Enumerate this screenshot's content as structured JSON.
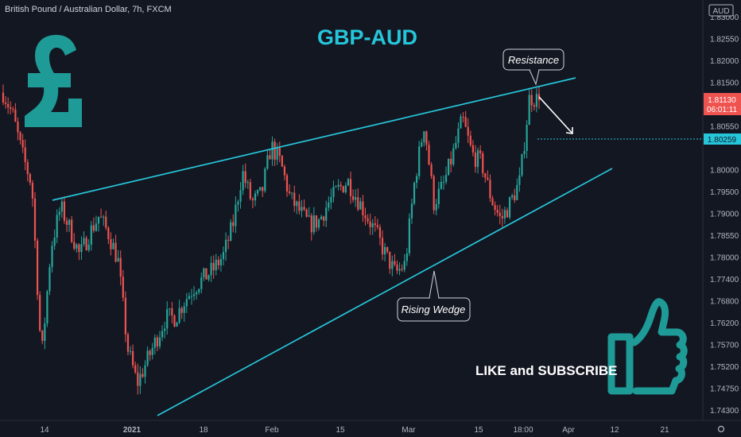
{
  "header": {
    "symbol": "British Pound / Australian Dollar, 7h, FXCM",
    "headline": "GBP-AUD"
  },
  "annotations": {
    "resistance": "Resistance",
    "support": "Rising Wedge",
    "cta": "LIKE and SUBSCRIBE",
    "currency_icon": "pound-sign-icon",
    "thumb_icon": "thumbs-up-icon"
  },
  "colors": {
    "background": "#131722",
    "up": "#26a69a",
    "down": "#ef5350",
    "accent": "#26c6da",
    "price_badge": "#ef5350",
    "line_badge": "#26c6da",
    "logo": "#1e9a97"
  },
  "chart_data": {
    "type": "candlestick",
    "y_axis": {
      "currency": "AUD",
      "ticks": [
        "1.83000",
        "1.82550",
        "1.82000",
        "1.81500",
        "1.81130",
        "1.80550",
        "1.80259",
        "1.80000",
        "1.79500",
        "1.79000",
        "1.78550",
        "1.78000",
        "1.77400",
        "1.76800",
        "1.76200",
        "1.75700",
        "1.75200",
        "1.74750",
        "1.74300"
      ],
      "range": [
        1.741,
        1.8315
      ]
    },
    "x_axis": {
      "ticks": [
        "14",
        "2021",
        "18",
        "Feb",
        "15",
        "Mar",
        "15",
        "18:00",
        "Apr",
        "12",
        "21"
      ]
    },
    "last_price": "1.81130",
    "countdown": "06:01:11",
    "horizontal_line_price": "1.80259",
    "resistance_line": {
      "start": [
        "14",
        1.7893
      ],
      "end": [
        "Apr",
        1.8165
      ]
    },
    "support_line": {
      "start": [
        "2021",
        1.743
      ],
      "end": [
        "Apr",
        1.796
      ]
    },
    "price_path": [
      [
        "4",
        1.813
      ],
      [
        "6",
        1.808
      ],
      [
        "8",
        1.799
      ],
      [
        "10",
        1.792
      ],
      [
        "12",
        1.7525
      ],
      [
        "14",
        1.778
      ],
      [
        "16",
        1.787
      ],
      [
        "18",
        1.782
      ],
      [
        "22",
        1.776
      ],
      [
        "24",
        1.781
      ],
      [
        "26",
        1.785
      ],
      [
        "28",
        1.781
      ],
      [
        "30",
        1.775
      ],
      [
        "2021",
        1.755
      ],
      [
        "02",
        1.747
      ],
      [
        "04",
        1.752
      ],
      [
        "06",
        1.757
      ],
      [
        "08",
        1.762
      ],
      [
        "10",
        1.762
      ],
      [
        "12",
        1.766
      ],
      [
        "14",
        1.769
      ],
      [
        "16",
        1.771
      ],
      [
        "18",
        1.773
      ],
      [
        "20",
        1.776
      ],
      [
        "22",
        1.783
      ],
      [
        "24",
        1.795
      ],
      [
        "26",
        1.788
      ],
      [
        "28",
        1.79
      ],
      [
        "30",
        1.801
      ],
      [
        "Feb",
        1.797
      ],
      [
        "03",
        1.789
      ],
      [
        "05",
        1.786
      ],
      [
        "07",
        1.783
      ],
      [
        "09",
        1.784
      ],
      [
        "11",
        1.788
      ],
      [
        "13",
        1.791
      ],
      [
        "15",
        1.793
      ],
      [
        "17",
        1.789
      ],
      [
        "19",
        1.785
      ],
      [
        "21",
        1.781
      ],
      [
        "23",
        1.776
      ],
      [
        "25",
        1.772
      ],
      [
        "27",
        1.774
      ],
      [
        "Mar",
        1.793
      ],
      [
        "03",
        1.806
      ],
      [
        "05",
        1.788
      ],
      [
        "07",
        1.792
      ],
      [
        "09",
        1.799
      ],
      [
        "11",
        1.807
      ],
      [
        "13",
        1.799
      ],
      [
        "15",
        1.797
      ],
      [
        "17",
        1.789
      ],
      [
        "19",
        1.784
      ],
      [
        "21",
        1.788
      ],
      [
        "23",
        1.793
      ],
      [
        "18:00",
        1.812
      ],
      [
        "18:00",
        1.8113
      ]
    ]
  }
}
